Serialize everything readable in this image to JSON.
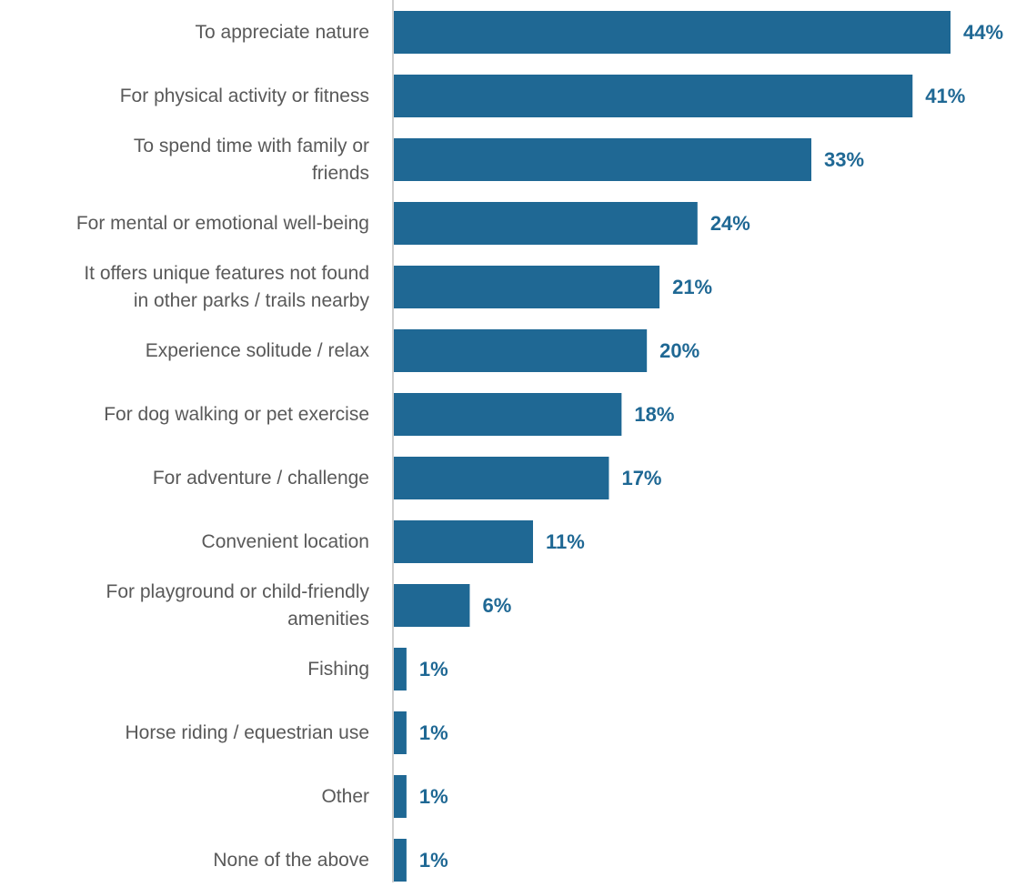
{
  "chart_data": {
    "type": "bar",
    "orientation": "horizontal",
    "categories": [
      "To appreciate nature",
      "For physical activity or fitness",
      "To spend time with family or friends",
      "For mental or emotional well-being",
      "It offers unique features not found in other parks / trails nearby",
      "Experience solitude / relax",
      "For dog walking or pet exercise",
      "For adventure / challenge",
      "Convenient location",
      "For playground or child-friendly amenities",
      "Fishing",
      "Horse riding / equestrian use",
      "Other",
      "None of the above"
    ],
    "category_lines": [
      [
        "To appreciate nature"
      ],
      [
        "For physical activity or fitness"
      ],
      [
        "To spend time with family or",
        "friends"
      ],
      [
        "For mental or emotional well-being"
      ],
      [
        "It offers unique features not found",
        "in other parks / trails nearby"
      ],
      [
        "Experience solitude / relax"
      ],
      [
        "For dog walking or pet exercise"
      ],
      [
        "For adventure / challenge"
      ],
      [
        "Convenient location"
      ],
      [
        "For playground or child-friendly",
        "amenities"
      ],
      [
        "Fishing"
      ],
      [
        "Horse riding / equestrian use"
      ],
      [
        "Other"
      ],
      [
        "None of the above"
      ]
    ],
    "values": [
      44,
      41,
      33,
      24,
      21,
      20,
      18,
      17,
      11,
      6,
      1,
      1,
      1,
      1
    ],
    "value_labels": [
      "44%",
      "41%",
      "33%",
      "24%",
      "21%",
      "20%",
      "18%",
      "17%",
      "11%",
      "6%",
      "1%",
      "1%",
      "1%",
      "1%"
    ],
    "xlim": [
      0,
      50
    ],
    "grid": false,
    "colors": {
      "bar": "#1f6894",
      "value_label": "#1f6894",
      "category_label": "#595959",
      "axis": "#bfbfbf"
    }
  }
}
